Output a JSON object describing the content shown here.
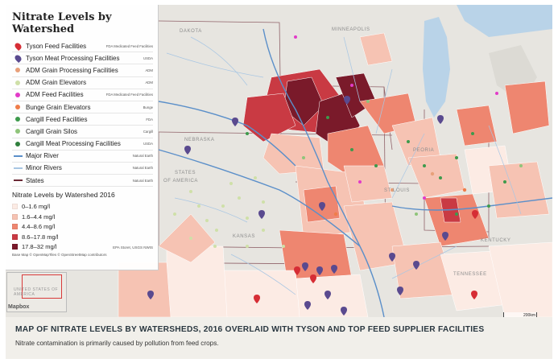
{
  "legend": {
    "title": "Nitrate Levels by Watershed",
    "facilities": [
      {
        "label": "Tyson Feed Facilities",
        "source": "FDA Medicated Feed Facilities",
        "symbol": "pin",
        "color": "#d62d35",
        "icon": "map-pin-icon"
      },
      {
        "label": "Tyson Meat Processing Facilities",
        "source": "USDA",
        "symbol": "pin",
        "color": "#5a4a8f",
        "icon": "map-pin-icon"
      },
      {
        "label": "ADM Grain Processing Facilities",
        "source": "ADM",
        "symbol": "dot",
        "color": "#e8a07a",
        "icon": "circle-icon"
      },
      {
        "label": "ADM Grain Elevators",
        "source": "ADM",
        "symbol": "dot",
        "color": "#cfe0a8",
        "icon": "circle-icon"
      },
      {
        "label": "ADM Feed Facilities",
        "source": "FDA Medicated Feed Facilities",
        "symbol": "dot",
        "color": "#e23bc8",
        "icon": "circle-icon"
      },
      {
        "label": "Bunge Grain Elevators",
        "source": "Bunge",
        "symbol": "dot",
        "color": "#ef7d4a",
        "icon": "circle-icon"
      },
      {
        "label": "Cargill Feed Facilities",
        "source": "FDA",
        "symbol": "dot",
        "color": "#3d9a4c",
        "icon": "circle-icon"
      },
      {
        "label": "Cargill Grain Silos",
        "source": "Cargill",
        "symbol": "dot",
        "color": "#8fc47a",
        "icon": "circle-icon"
      },
      {
        "label": "Cargill Meat Processing Facilities",
        "source": "USDA",
        "symbol": "dot",
        "color": "#2f7f3d",
        "icon": "circle-icon"
      },
      {
        "label": "Major River",
        "source": "Natural Earth",
        "symbol": "line",
        "color": "#5b8fc9",
        "icon": "line-icon"
      },
      {
        "label": "Minor Rivers",
        "source": "Natural Earth",
        "symbol": "line",
        "color": "#a8c6e3",
        "icon": "line-icon"
      },
      {
        "label": "States",
        "source": "Natural Earth",
        "symbol": "line",
        "color": "#6b2a36",
        "icon": "line-icon"
      }
    ],
    "scale_title": "Nitrate Levels by Watershed 2016",
    "scale": [
      {
        "label": "0–1.6 mg/l",
        "color": "#fcebe4"
      },
      {
        "label": "1.6–4.4 mg/l",
        "color": "#f6c3b3"
      },
      {
        "label": "4.4–8.6 mg/l",
        "color": "#ee8670"
      },
      {
        "label": "8.6–17.8 mg/l",
        "color": "#c93a43"
      },
      {
        "label": "17.8–32 mg/l",
        "color": "#7a1a2a"
      }
    ],
    "scale_source": "EPA Storet, USGS NWIS",
    "basemap_credit": "Base Map © OpenMapTiles © OpenStreetMap contributors"
  },
  "map": {
    "inset_label": "UNITED STATES OF AMERICA",
    "mapbox_logo": "Mapbox",
    "scale_label": "200km",
    "attribution": "© Mapbox © OpenStreetMap",
    "place_labels": [
      {
        "id": "dakota",
        "text": "DAKOTA"
      },
      {
        "id": "minneapolis",
        "text": "MINNEAPOLIS"
      },
      {
        "id": "nebraska",
        "text": "NEBRASKA"
      },
      {
        "id": "states",
        "text": "STATES"
      },
      {
        "id": "america",
        "text": "OF AMERICA"
      },
      {
        "id": "stlouis",
        "text": "ST LOUIS"
      },
      {
        "id": "kansas",
        "text": "KANSAS"
      },
      {
        "id": "kentucky",
        "text": "KENTUCKY"
      },
      {
        "id": "tennessee",
        "text": "TENNESSEE"
      },
      {
        "id": "peoria",
        "text": "PEORIA"
      }
    ]
  },
  "caption": {
    "title": "MAP OF NITRATE LEVELS BY WATERSHEDS, 2016 OVERLAID WITH TYSON AND TOP FEED SUPPLIER FACILITIES",
    "subtitle": "Nitrate contamination is primarily caused by pollution from feed crops."
  }
}
